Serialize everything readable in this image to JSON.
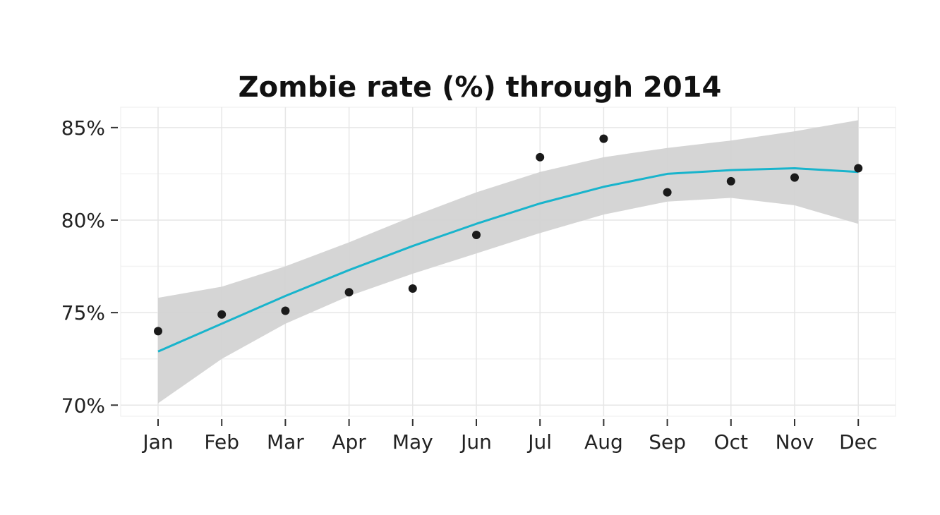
{
  "chart_data": {
    "type": "line",
    "title": "Zombie rate (%) through 2014",
    "xlabel": "",
    "ylabel": "",
    "categories": [
      "Jan",
      "Feb",
      "Mar",
      "Apr",
      "May",
      "Jun",
      "Jul",
      "Aug",
      "Sep",
      "Oct",
      "Nov",
      "Dec"
    ],
    "ylim": [
      69.4,
      86.1
    ],
    "yticks": [
      70,
      75,
      80,
      85
    ],
    "ytick_labels": [
      "70%",
      "75%",
      "80%",
      "85%"
    ],
    "grid": true,
    "legend": "none",
    "series": [
      {
        "kind": "scatter",
        "values": [
          74.0,
          74.9,
          75.1,
          76.1,
          76.3,
          79.2,
          83.4,
          84.4,
          81.5,
          82.1,
          82.3,
          82.8
        ]
      },
      {
        "kind": "smooth-line",
        "values": [
          72.9,
          74.4,
          75.9,
          77.3,
          78.6,
          79.8,
          80.9,
          81.8,
          82.5,
          82.7,
          82.8,
          82.6
        ]
      },
      {
        "kind": "confidence-band",
        "upper": [
          75.8,
          76.4,
          77.5,
          78.8,
          80.2,
          81.5,
          82.6,
          83.4,
          83.9,
          84.3,
          84.8,
          85.4
        ],
        "lower": [
          70.1,
          72.5,
          74.4,
          75.9,
          77.1,
          78.2,
          79.3,
          80.3,
          81.0,
          81.2,
          80.8,
          79.8
        ]
      }
    ],
    "colors": {
      "line": "#18b4cc",
      "band": "#d3d3d3",
      "points": "#1a1a1a",
      "grid": "#e6e6e6"
    }
  }
}
